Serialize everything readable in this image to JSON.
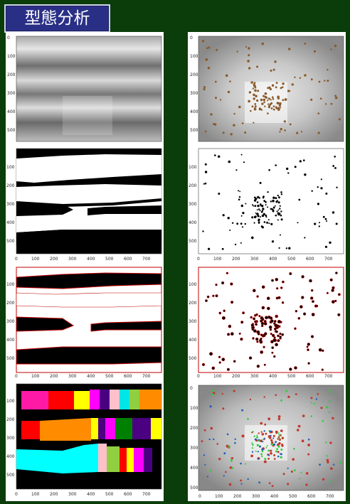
{
  "header": {
    "title": "型態分析"
  },
  "panels": {
    "left": {
      "gray": {
        "yticks": [
          "0",
          "100",
          "200",
          "300",
          "400",
          "500"
        ],
        "xticks": []
      },
      "binary": {
        "yticks": [
          "100",
          "200",
          "300",
          "400",
          "500"
        ],
        "xticks": [
          "0",
          "100",
          "200",
          "300",
          "400",
          "500",
          "600",
          "700"
        ]
      },
      "contour": {
        "yticks": [
          "100",
          "200",
          "300",
          "400",
          "500"
        ],
        "xticks": [
          "0",
          "100",
          "200",
          "300",
          "400",
          "500",
          "600",
          "700"
        ]
      },
      "segments": {
        "yticks": [
          "100",
          "200",
          "300",
          "400",
          "500"
        ],
        "xticks": [
          "0",
          "100",
          "200",
          "300",
          "400",
          "500",
          "600",
          "700"
        ]
      }
    },
    "right": {
      "photo": {
        "yticks": [
          "0",
          "100",
          "200",
          "300",
          "400",
          "500"
        ],
        "xticks": []
      },
      "binary": {
        "yticks": [
          "100",
          "200",
          "300",
          "400",
          "500"
        ],
        "xticks": [
          "0",
          "100",
          "200",
          "300",
          "400",
          "500",
          "600",
          "700"
        ]
      },
      "contour": {
        "yticks": [
          "100",
          "200",
          "300",
          "400",
          "500"
        ],
        "xticks": [
          "0",
          "100",
          "200",
          "300",
          "400",
          "500",
          "600",
          "700"
        ]
      },
      "detect": {
        "yticks": [
          "0",
          "100",
          "200",
          "300",
          "400",
          "500"
        ],
        "xticks": [
          "0",
          "100",
          "200",
          "300",
          "400",
          "500",
          "600",
          "700"
        ]
      }
    }
  },
  "colors": {
    "background": "#0a3d0a",
    "title_bg": "#2a2f86",
    "contour": "#c00000"
  }
}
